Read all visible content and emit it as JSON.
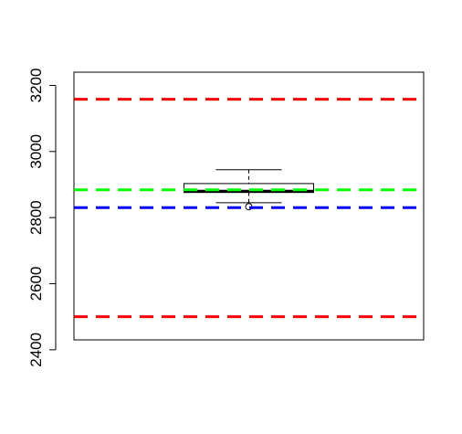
{
  "chart_data": {
    "type": "boxplot",
    "title": "",
    "xlabel": "",
    "ylabel": "",
    "ylim": [
      2430,
      3240
    ],
    "yticks": [
      2400,
      2600,
      2800,
      3000,
      3200
    ],
    "ytick_labels": [
      "2400",
      "2600",
      "2800",
      "3000",
      "3200"
    ],
    "axis_orientation": "left axis with rotated tick labels",
    "grid": false,
    "box": {
      "whisker_low": 2845,
      "q1": 2876,
      "median": 2880,
      "q3": 2903,
      "whisker_high": 2945,
      "outliers": [
        2833
      ]
    },
    "reference_lines": [
      {
        "value": 3158,
        "color": "#ff0000",
        "style": "dashed"
      },
      {
        "value": 2500,
        "color": "#ff0000",
        "style": "dashed"
      },
      {
        "value": 2884,
        "color": "#00ff00",
        "style": "dashed"
      },
      {
        "value": 2830,
        "color": "#0000ff",
        "style": "dashed"
      }
    ]
  }
}
